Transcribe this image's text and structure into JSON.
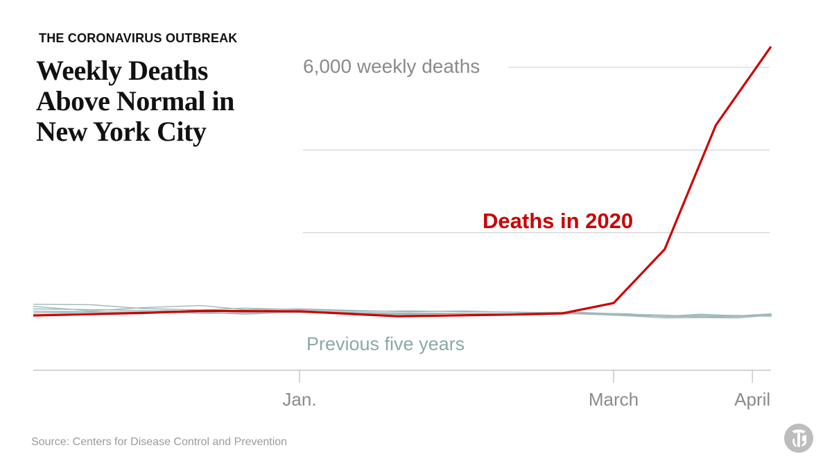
{
  "header": {
    "kicker": "THE CORONAVIRUS OUTBREAK",
    "title": "Weekly Deaths Above Normal in New York City"
  },
  "source": "Source: Centers for Disease Control and Prevention",
  "logo_icon": "nyt-t-logo-icon",
  "colors": {
    "highlight": "#cc0000",
    "previous": "#9fb8b8",
    "grid": "#cccccc",
    "axis": "#bbbbbb",
    "text_muted": "#8a8a8a"
  },
  "chart_data": {
    "type": "line",
    "title": "Weekly Deaths Above Normal in New York City",
    "xlabel": "",
    "ylabel": "",
    "gridline_label": "6,000 weekly deaths",
    "gridlines": [
      2000,
      4000,
      6000
    ],
    "ylim": [
      -1050,
      6500
    ],
    "x_ticks": [
      {
        "label": "Jan.",
        "week": 0
      },
      {
        "label": "March",
        "week": 8.6
      },
      {
        "label": "April",
        "week": 12.4
      }
    ],
    "annotations": {
      "highlight_label": "Deaths in 2020",
      "previous_label": "Previous five years"
    },
    "series": [
      {
        "name": "Deaths in 2020",
        "highlight": true,
        "x": [
          -7.3,
          -4.3,
          -2.7,
          0,
          2.7,
          5.7,
          7.2,
          8.6,
          10,
          11.4,
          13.5
        ],
        "values": [
          0,
          60,
          110,
          100,
          -20,
          20,
          50,
          300,
          1600,
          4600,
          6500
        ]
      },
      {
        "x": [
          -7.3,
          -5.7,
          -4.3,
          -2.7,
          -1.5,
          0,
          1.5,
          3,
          4.5,
          6,
          7.5,
          9,
          10,
          11,
          12,
          13,
          13.5
        ],
        "values": [
          270,
          260,
          170,
          130,
          180,
          140,
          100,
          110,
          90,
          80,
          60,
          40,
          -30,
          -20,
          -10,
          10,
          20
        ]
      },
      {
        "x": [
          -7.3,
          -5.7,
          -4.3,
          -2.7,
          -1.5,
          0,
          1.5,
          3,
          4.5,
          6,
          7.5,
          9,
          10,
          11,
          12,
          13,
          13.5
        ],
        "values": [
          220,
          110,
          190,
          240,
          140,
          160,
          120,
          90,
          110,
          70,
          80,
          30,
          10,
          -40,
          -30,
          20,
          40
        ]
      },
      {
        "x": [
          -7.3,
          -5.7,
          -4.3,
          -2.7,
          -1.5,
          0,
          1.5,
          3,
          4.5,
          6,
          7.5,
          9,
          10,
          11,
          12,
          13,
          13.5
        ],
        "values": [
          160,
          140,
          120,
          100,
          80,
          110,
          70,
          60,
          50,
          40,
          70,
          20,
          -20,
          30,
          -10,
          40,
          -10
        ]
      },
      {
        "x": [
          -7.3,
          -5.7,
          -4.3,
          -2.7,
          -1.5,
          0,
          1.5,
          3,
          4.5,
          6,
          7.5,
          9,
          10,
          11,
          12,
          13,
          13.5
        ],
        "values": [
          100,
          90,
          70,
          80,
          30,
          90,
          40,
          20,
          10,
          30,
          50,
          -10,
          -60,
          -50,
          -60,
          10,
          0
        ]
      },
      {
        "x": [
          -7.3,
          -5.7,
          -4.3,
          -2.7,
          -1.5,
          0,
          1.5,
          3,
          4.5,
          6,
          7.5,
          9,
          10,
          11,
          12,
          13,
          13.5
        ],
        "values": [
          60,
          80,
          90,
          50,
          60,
          70,
          60,
          40,
          50,
          10,
          40,
          0,
          -20,
          10,
          0,
          -20,
          30
        ]
      }
    ]
  }
}
